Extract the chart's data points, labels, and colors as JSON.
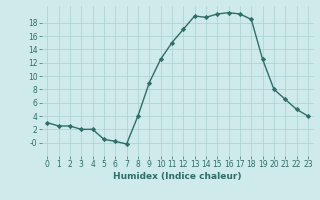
{
  "x": [
    0,
    1,
    2,
    3,
    4,
    5,
    6,
    7,
    8,
    9,
    10,
    11,
    12,
    13,
    14,
    15,
    16,
    17,
    18,
    19,
    20,
    21,
    22,
    23
  ],
  "y": [
    3,
    2.5,
    2.5,
    2,
    2,
    0.5,
    0.2,
    -0.2,
    4,
    9,
    12.5,
    15,
    17,
    19,
    18.8,
    19.3,
    19.5,
    19.3,
    18.5,
    12.5,
    8,
    6.5,
    5,
    4
  ],
  "line_color": "#2e6e68",
  "marker": "D",
  "marker_size": 2.2,
  "bg_color": "#ceeaea",
  "grid_color": "#aacfcf",
  "xlabel": "Humidex (Indice chaleur)",
  "xlim": [
    -0.5,
    23.5
  ],
  "ylim": [
    -2.0,
    20.5
  ],
  "yticks": [
    0,
    2,
    4,
    6,
    8,
    10,
    12,
    14,
    16,
    18
  ],
  "ytick_labels": [
    "-0",
    "2",
    "4",
    "6",
    "8",
    "10",
    "12",
    "14",
    "16",
    "18"
  ],
  "xticks": [
    0,
    1,
    2,
    3,
    4,
    5,
    6,
    7,
    8,
    9,
    10,
    11,
    12,
    13,
    14,
    15,
    16,
    17,
    18,
    19,
    20,
    21,
    22,
    23
  ],
  "xlabel_fontsize": 6.5,
  "tick_fontsize": 5.5,
  "linewidth": 1.0
}
